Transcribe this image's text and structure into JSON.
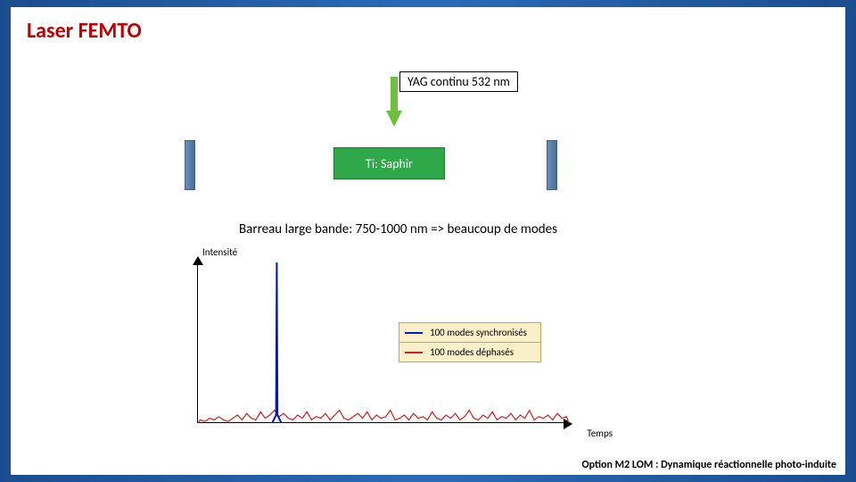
{
  "title": {
    "text": "Laser FEMTO",
    "color": "#c00000",
    "fontsize": 24
  },
  "pump": {
    "label": "YAG continu 532 nm",
    "arrow_color": "#6fbf3f"
  },
  "cavity": {
    "mirror_fill_light": "#6a8fb8",
    "mirror_fill_dark": "#4a6f98",
    "mirror_border": "#3b5f86",
    "gain": {
      "label": "Ti: Saphir",
      "fill": "#2fa84a",
      "border": "#1b7a2a",
      "text_color": "#ffffff"
    }
  },
  "barreau": "Barreau large bande: 750-1000 nm => beaucoup de modes",
  "chart": {
    "type": "line",
    "y_label": "Intensité",
    "x_label": "Temps",
    "background": "#ffffff",
    "axis_color": "#000000",
    "legend_bg": "#f9f0c9",
    "legend_border": "#c9a74d",
    "series": [
      {
        "name": "100 modes synchronisés",
        "color": "#0018c8"
      },
      {
        "name": "100 modes déphasés",
        "color": "#d81e1e"
      }
    ],
    "xlim": [
      0,
      400
    ],
    "ylim": [
      0,
      100
    ],
    "blue_peak": {
      "x": 85,
      "height": 100,
      "width": 5
    },
    "red_noise": {
      "max_height": 9,
      "values": [
        2,
        1,
        3,
        2,
        4,
        2,
        1,
        3,
        5,
        2,
        6,
        3,
        2,
        7,
        3,
        5,
        8,
        4,
        6,
        3,
        2,
        5,
        3,
        7,
        2,
        4,
        3,
        6,
        2,
        5,
        8,
        3,
        2,
        4,
        6,
        3,
        7,
        2,
        5,
        3,
        4,
        8,
        2,
        3,
        5,
        2,
        6,
        3,
        4,
        2,
        7,
        3,
        2,
        5,
        3,
        6,
        2,
        4,
        8,
        3,
        2,
        5,
        3,
        7,
        2,
        4,
        3,
        6,
        2,
        5,
        3,
        8,
        2,
        4,
        3,
        5,
        2,
        6,
        3,
        4
      ]
    }
  },
  "footer": "Option M2 LOM : Dynamique réactionnelle photo-induite"
}
